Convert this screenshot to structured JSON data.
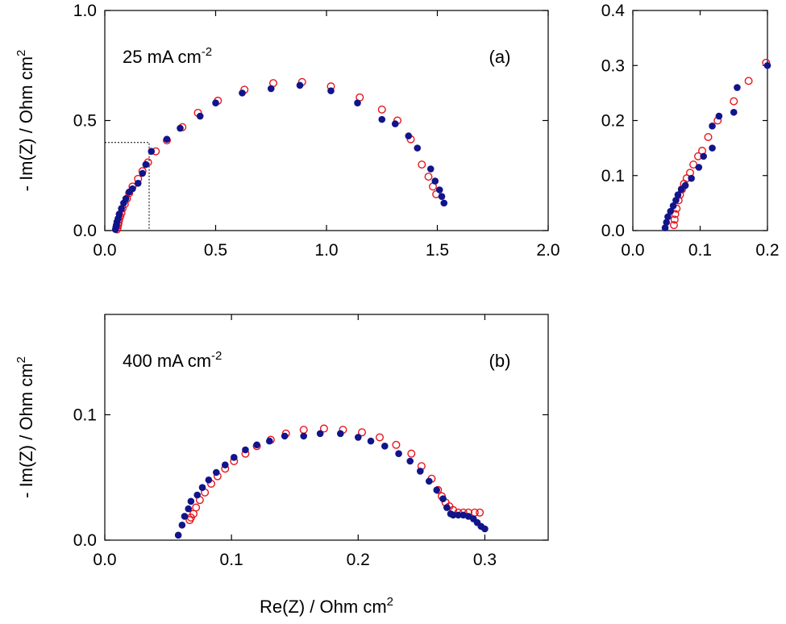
{
  "chart_data": [
    {
      "id": "a",
      "type": "scatter",
      "panel_label": "(a)",
      "annotation": "25 mA cm",
      "annotation_sup": "-2",
      "xlabel": "",
      "ylabel": "- Im(Z)  / Ohm cm",
      "ylabel_sup": "2",
      "xlim": [
        0,
        2.0
      ],
      "ylim": [
        0,
        1.0
      ],
      "xticks": [
        "0.0",
        "0.5",
        "1.0",
        "1.5",
        "2.0"
      ],
      "xtick_values": [
        0,
        0.5,
        1.0,
        1.5,
        2.0
      ],
      "yticks": [
        "0.0",
        "0.5",
        "1.0"
      ],
      "ytick_values": [
        0,
        0.5,
        1.0
      ],
      "zoom_box": {
        "x": [
          0,
          0.2
        ],
        "y": [
          0,
          0.4
        ]
      },
      "series": [
        {
          "marker": "open-circle",
          "color": "#e8141b",
          "points": [
            [
              0.055,
              0.005
            ],
            [
              0.058,
              0.015
            ],
            [
              0.06,
              0.025
            ],
            [
              0.062,
              0.035
            ],
            [
              0.065,
              0.05
            ],
            [
              0.07,
              0.065
            ],
            [
              0.075,
              0.08
            ],
            [
              0.08,
              0.1
            ],
            [
              0.09,
              0.12
            ],
            [
              0.1,
              0.145
            ],
            [
              0.11,
              0.17
            ],
            [
              0.125,
              0.2
            ],
            [
              0.15,
              0.235
            ],
            [
              0.17,
              0.27
            ],
            [
              0.195,
              0.31
            ],
            [
              0.23,
              0.36
            ],
            [
              0.28,
              0.41
            ],
            [
              0.35,
              0.47
            ],
            [
              0.42,
              0.535
            ],
            [
              0.51,
              0.59
            ],
            [
              0.63,
              0.64
            ],
            [
              0.76,
              0.67
            ],
            [
              0.89,
              0.675
            ],
            [
              1.02,
              0.655
            ],
            [
              1.15,
              0.605
            ],
            [
              1.25,
              0.55
            ],
            [
              1.32,
              0.5
            ],
            [
              1.38,
              0.415
            ],
            [
              1.43,
              0.3
            ],
            [
              1.46,
              0.245
            ],
            [
              1.48,
              0.2
            ],
            [
              1.495,
              0.165
            ]
          ]
        },
        {
          "marker": "filled-circle",
          "color": "#11148a",
          "points": [
            [
              0.048,
              0.005
            ],
            [
              0.05,
              0.015
            ],
            [
              0.052,
              0.025
            ],
            [
              0.055,
              0.04
            ],
            [
              0.06,
              0.055
            ],
            [
              0.065,
              0.075
            ],
            [
              0.075,
              0.1
            ],
            [
              0.085,
              0.125
            ],
            [
              0.095,
              0.145
            ],
            [
              0.11,
              0.175
            ],
            [
              0.125,
              0.19
            ],
            [
              0.15,
              0.215
            ],
            [
              0.17,
              0.26
            ],
            [
              0.185,
              0.3
            ],
            [
              0.21,
              0.36
            ],
            [
              0.28,
              0.415
            ],
            [
              0.34,
              0.465
            ],
            [
              0.43,
              0.52
            ],
            [
              0.5,
              0.58
            ],
            [
              0.62,
              0.625
            ],
            [
              0.75,
              0.645
            ],
            [
              0.88,
              0.66
            ],
            [
              1.02,
              0.635
            ],
            [
              1.14,
              0.58
            ],
            [
              1.25,
              0.505
            ],
            [
              1.31,
              0.485
            ],
            [
              1.37,
              0.43
            ],
            [
              1.41,
              0.375
            ],
            [
              1.47,
              0.28
            ],
            [
              1.49,
              0.225
            ],
            [
              1.51,
              0.185
            ],
            [
              1.52,
              0.155
            ],
            [
              1.53,
              0.125
            ]
          ]
        }
      ]
    },
    {
      "id": "inset",
      "type": "scatter",
      "xlabel": "",
      "ylabel": "",
      "xlim": [
        0,
        0.2
      ],
      "ylim": [
        0,
        0.4
      ],
      "xticks": [
        "0.0",
        "0.1",
        "0.2"
      ],
      "xtick_values": [
        0,
        0.1,
        0.2
      ],
      "yticks": [
        "0.0",
        "0.1",
        "0.2",
        "0.3",
        "0.4"
      ],
      "ytick_values": [
        0,
        0.1,
        0.2,
        0.3,
        0.4
      ],
      "series": [
        {
          "marker": "open-circle",
          "color": "#e8141b",
          "points": [
            [
              0.061,
              0.01
            ],
            [
              0.062,
              0.02
            ],
            [
              0.063,
              0.03
            ],
            [
              0.065,
              0.04
            ],
            [
              0.068,
              0.055
            ],
            [
              0.07,
              0.065
            ],
            [
              0.073,
              0.075
            ],
            [
              0.076,
              0.085
            ],
            [
              0.08,
              0.095
            ],
            [
              0.085,
              0.105
            ],
            [
              0.09,
              0.12
            ],
            [
              0.097,
              0.135
            ],
            [
              0.103,
              0.145
            ],
            [
              0.112,
              0.17
            ],
            [
              0.126,
              0.2
            ],
            [
              0.15,
              0.235
            ],
            [
              0.172,
              0.272
            ],
            [
              0.198,
              0.305
            ]
          ]
        },
        {
          "marker": "filled-circle",
          "color": "#11148a",
          "points": [
            [
              0.048,
              0.005
            ],
            [
              0.05,
              0.015
            ],
            [
              0.052,
              0.025
            ],
            [
              0.056,
              0.035
            ],
            [
              0.06,
              0.045
            ],
            [
              0.064,
              0.055
            ],
            [
              0.067,
              0.065
            ],
            [
              0.072,
              0.075
            ],
            [
              0.078,
              0.082
            ],
            [
              0.087,
              0.095
            ],
            [
              0.098,
              0.115
            ],
            [
              0.105,
              0.135
            ],
            [
              0.118,
              0.15
            ],
            [
              0.118,
              0.19
            ],
            [
              0.128,
              0.208
            ],
            [
              0.15,
              0.215
            ],
            [
              0.155,
              0.26
            ],
            [
              0.2,
              0.3
            ]
          ]
        }
      ]
    },
    {
      "id": "b",
      "type": "scatter",
      "panel_label": "(b)",
      "annotation": "400 mA cm",
      "annotation_sup": "-2",
      "xlabel": "Re(Z)  / Ohm cm",
      "xlabel_sup": "2",
      "ylabel": "- Im(Z)  / Ohm cm",
      "ylabel_sup": "2",
      "xlim": [
        0,
        0.35
      ],
      "ylim": [
        0,
        0.18
      ],
      "xticks": [
        "0.0",
        "0.1",
        "0.2",
        "0.3"
      ],
      "xtick_values": [
        0,
        0.1,
        0.2,
        0.3
      ],
      "yticks": [
        "0.0",
        "0.1"
      ],
      "ytick_values": [
        0,
        0.1
      ],
      "series": [
        {
          "marker": "open-circle",
          "color": "#e8141b",
          "points": [
            [
              0.067,
              0.016
            ],
            [
              0.068,
              0.018
            ],
            [
              0.07,
              0.021
            ],
            [
              0.072,
              0.026
            ],
            [
              0.075,
              0.032
            ],
            [
              0.079,
              0.038
            ],
            [
              0.084,
              0.045
            ],
            [
              0.089,
              0.051
            ],
            [
              0.095,
              0.057
            ],
            [
              0.102,
              0.063
            ],
            [
              0.111,
              0.069
            ],
            [
              0.12,
              0.075
            ],
            [
              0.131,
              0.08
            ],
            [
              0.143,
              0.085
            ],
            [
              0.157,
              0.088
            ],
            [
              0.173,
              0.089
            ],
            [
              0.188,
              0.088
            ],
            [
              0.203,
              0.086
            ],
            [
              0.217,
              0.082
            ],
            [
              0.23,
              0.076
            ],
            [
              0.242,
              0.069
            ],
            [
              0.25,
              0.059
            ],
            [
              0.258,
              0.049
            ],
            [
              0.263,
              0.04
            ],
            [
              0.266,
              0.035
            ],
            [
              0.269,
              0.03
            ],
            [
              0.272,
              0.027
            ],
            [
              0.275,
              0.024
            ],
            [
              0.279,
              0.022
            ],
            [
              0.283,
              0.022
            ],
            [
              0.287,
              0.022
            ],
            [
              0.292,
              0.022
            ],
            [
              0.296,
              0.022
            ]
          ]
        },
        {
          "marker": "filled-circle",
          "color": "#11148a",
          "points": [
            [
              0.058,
              0.004
            ],
            [
              0.061,
              0.012
            ],
            [
              0.063,
              0.019
            ],
            [
              0.066,
              0.025
            ],
            [
              0.068,
              0.031
            ],
            [
              0.073,
              0.036
            ],
            [
              0.077,
              0.042
            ],
            [
              0.082,
              0.048
            ],
            [
              0.088,
              0.054
            ],
            [
              0.095,
              0.06
            ],
            [
              0.102,
              0.066
            ],
            [
              0.111,
              0.072
            ],
            [
              0.12,
              0.076
            ],
            [
              0.13,
              0.079
            ],
            [
              0.142,
              0.083
            ],
            [
              0.157,
              0.083
            ],
            [
              0.17,
              0.085
            ],
            [
              0.186,
              0.085
            ],
            [
              0.2,
              0.082
            ],
            [
              0.21,
              0.079
            ],
            [
              0.221,
              0.075
            ],
            [
              0.232,
              0.069
            ],
            [
              0.241,
              0.063
            ],
            [
              0.249,
              0.055
            ],
            [
              0.256,
              0.047
            ],
            [
              0.262,
              0.04
            ],
            [
              0.267,
              0.033
            ],
            [
              0.27,
              0.026
            ],
            [
              0.273,
              0.021
            ],
            [
              0.275,
              0.02
            ],
            [
              0.279,
              0.02
            ],
            [
              0.283,
              0.02
            ],
            [
              0.287,
              0.019
            ],
            [
              0.291,
              0.017
            ],
            [
              0.294,
              0.014
            ],
            [
              0.297,
              0.011
            ],
            [
              0.3,
              0.009
            ]
          ]
        }
      ]
    }
  ]
}
